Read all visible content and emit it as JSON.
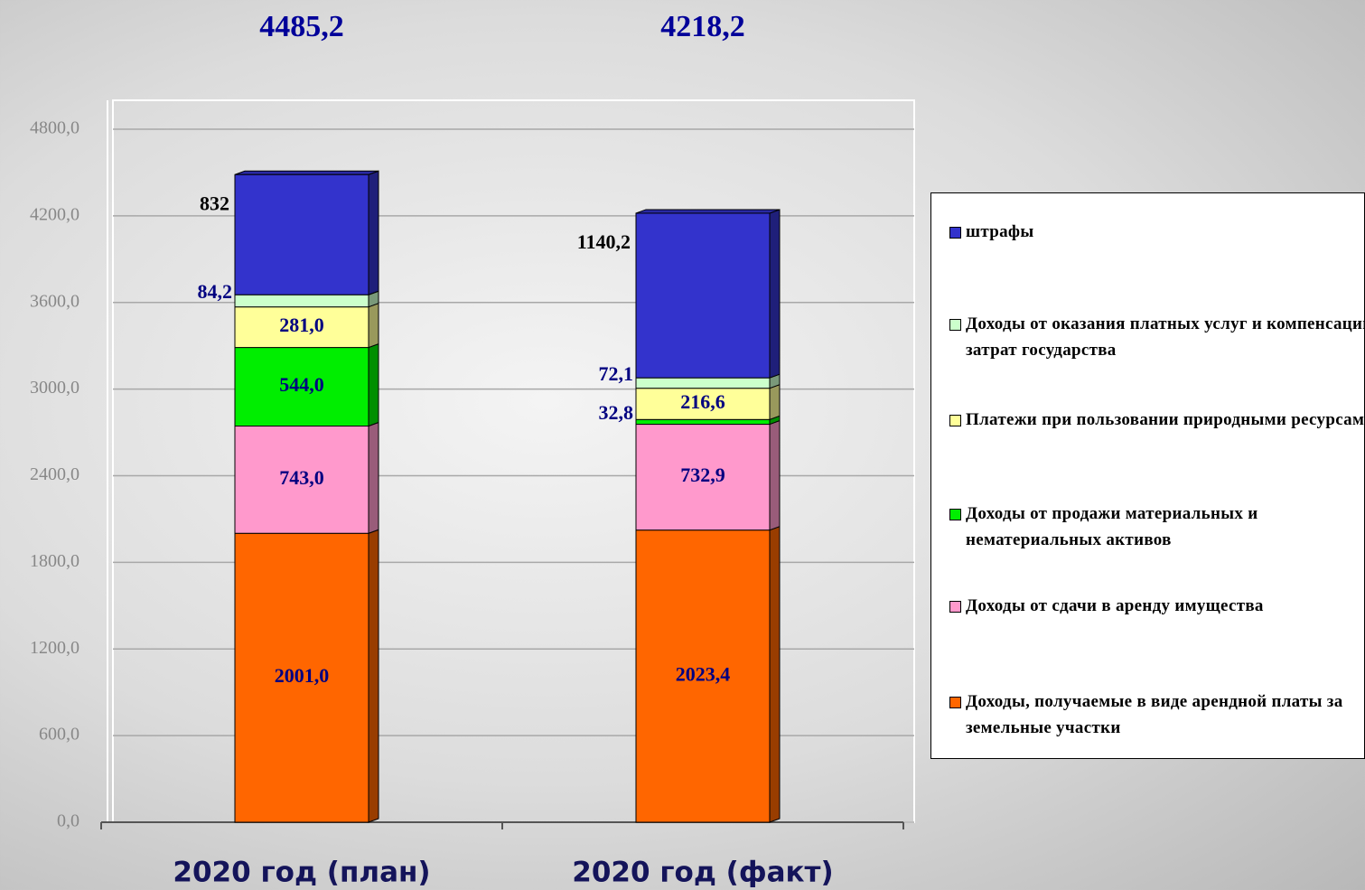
{
  "chart_data": {
    "type": "stacked_bar",
    "categories": [
      "2020 год (план)",
      "2020 год (факт)"
    ],
    "totals": [
      {
        "value": 4485.2,
        "label": "4485,2"
      },
      {
        "value": 4218.2,
        "label": "4218,2"
      }
    ],
    "series": [
      {
        "name": "Доходы, получаемые в виде арендной платы за земельные участки",
        "color": "#ff6600",
        "values": [
          2001.0,
          2023.4
        ],
        "value_labels": [
          "2001,0",
          "2023,4"
        ]
      },
      {
        "name": "Доходы от сдачи в аренду имущества",
        "color": "#ff99cc",
        "values": [
          743.0,
          732.9
        ],
        "value_labels": [
          "743,0",
          "732,9"
        ]
      },
      {
        "name": "Доходы от продажи материальных и нематериальных активов",
        "color": "#00ee00",
        "values": [
          544.0,
          32.8
        ],
        "value_labels": [
          "544,0",
          "32,8"
        ]
      },
      {
        "name": "Платежи при пользовании природными ресурсами",
        "color": "#ffff99",
        "values": [
          281.0,
          216.6
        ],
        "value_labels": [
          "281,0",
          "216,6"
        ]
      },
      {
        "name": "Доходы от оказания платных услуг и компенсации затрат государства",
        "color": "#ccffcc",
        "values": [
          84.2,
          72.1
        ],
        "value_labels": [
          "84,2",
          "72,1"
        ]
      },
      {
        "name": "штрафы",
        "color": "#3333cc",
        "values": [
          832,
          1140.2
        ],
        "value_labels": [
          "832",
          "1140,2"
        ]
      }
    ],
    "ylim": [
      0,
      5000
    ],
    "yticks": [
      {
        "value": 0,
        "label": "0,0"
      },
      {
        "value": 600,
        "label": "600,0"
      },
      {
        "value": 1200,
        "label": "1200,0"
      },
      {
        "value": 1800,
        "label": "1800,0"
      },
      {
        "value": 2400,
        "label": "2400,0"
      },
      {
        "value": 3000,
        "label": "3000,0"
      },
      {
        "value": 3600,
        "label": "3600,0"
      },
      {
        "value": 4200,
        "label": "4200,0"
      },
      {
        "value": 4800,
        "label": "4800,0"
      }
    ],
    "grid": true,
    "legend": "right"
  }
}
